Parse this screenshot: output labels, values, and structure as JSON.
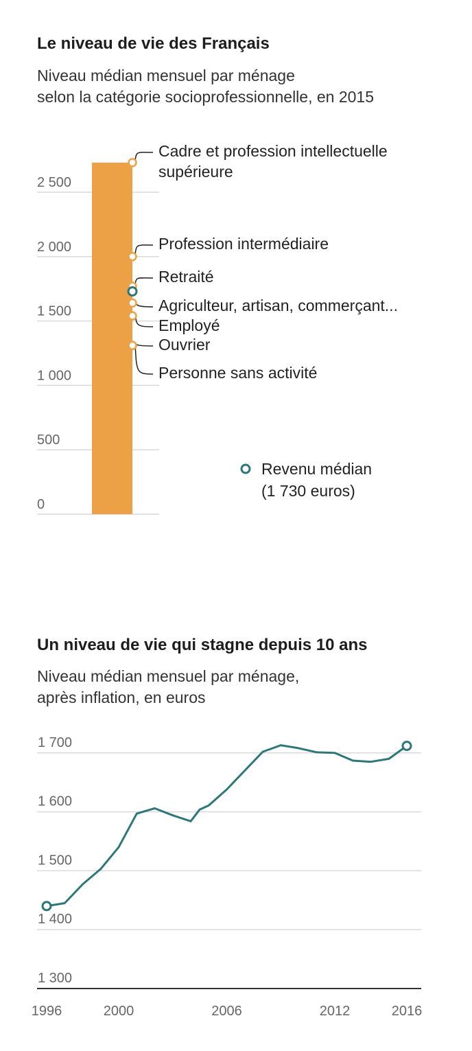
{
  "charts_text": {
    "c1_title": "Le niveau de vie des Français",
    "c1_sub1": "Niveau médian mensuel par ménage",
    "c1_sub2": "selon la catégorie socioprofessionnelle, en 2015",
    "c2_title": "Un niveau de vie qui stagne depuis 10 ans",
    "c2_sub1": "Niveau médian mensuel par ménage,",
    "c2_sub2": "après inflation, en euros"
  },
  "chart_data": [
    {
      "type": "bar",
      "title": "Le niveau de vie des Français",
      "subtitle": "Niveau médian mensuel par ménage selon la catégorie socioprofessionnelle, en 2015",
      "ylim": [
        0,
        2700
      ],
      "yticks": [
        0,
        500,
        1000,
        1500,
        2000,
        2500
      ],
      "ytick_labels": [
        "0",
        "500",
        "1 000",
        "1 500",
        "2 000",
        "2 500"
      ],
      "grid": true,
      "bar_value": 2730,
      "categories": [
        {
          "lines": [
            "Cadre et profession intellectuelle",
            "supérieure"
          ],
          "value": 2730
        },
        {
          "lines": [
            "Profession intermédiaire"
          ],
          "value": 2000
        },
        {
          "lines": [
            "Retraité"
          ],
          "value": 1770
        },
        {
          "lines": [
            "Agriculteur, artisan, commerçant..."
          ],
          "value": 1640
        },
        {
          "lines": [
            "Employé"
          ],
          "value": 1540
        },
        {
          "lines": [
            "Ouvrier"
          ],
          "value": 1310
        },
        {
          "lines": [
            "Personne sans activité"
          ],
          "value": 1310
        }
      ],
      "median": {
        "value": 1730,
        "legend_lines": [
          "Revenu médian",
          "(1 730 euros)"
        ]
      },
      "colors": {
        "bar": "#eda147",
        "median": "#2d7779",
        "grid": "#d9d9d9"
      }
    },
    {
      "type": "line",
      "title": "Un niveau de vie qui stagne depuis 10 ans",
      "subtitle": "Niveau médian mensuel par ménage, après inflation, en euros",
      "x": [
        1996,
        1997,
        1998,
        1999,
        2000,
        2001,
        2002,
        2003,
        2004,
        2004.5,
        2005,
        2006,
        2007,
        2008,
        2009,
        2010,
        2011,
        2012,
        2013,
        2014,
        2015,
        2016
      ],
      "values": [
        1440,
        1445,
        1477,
        1503,
        1540,
        1597,
        1606,
        1594,
        1584,
        1604,
        1611,
        1638,
        1670,
        1702,
        1713,
        1708,
        1701,
        1700,
        1687,
        1685,
        1690,
        1712
      ],
      "ylim": [
        1300,
        1720
      ],
      "yticks": [
        1300,
        1400,
        1500,
        1600,
        1700
      ],
      "ytick_labels": [
        "1 300",
        "1 400",
        "1 500",
        "1 600",
        "1 700"
      ],
      "xticks": [
        1996,
        2000,
        2006,
        2012,
        2016
      ],
      "grid": true,
      "colors": {
        "line": "#2d7779",
        "grid": "#d9d9d9",
        "axis": "#333333"
      }
    }
  ]
}
